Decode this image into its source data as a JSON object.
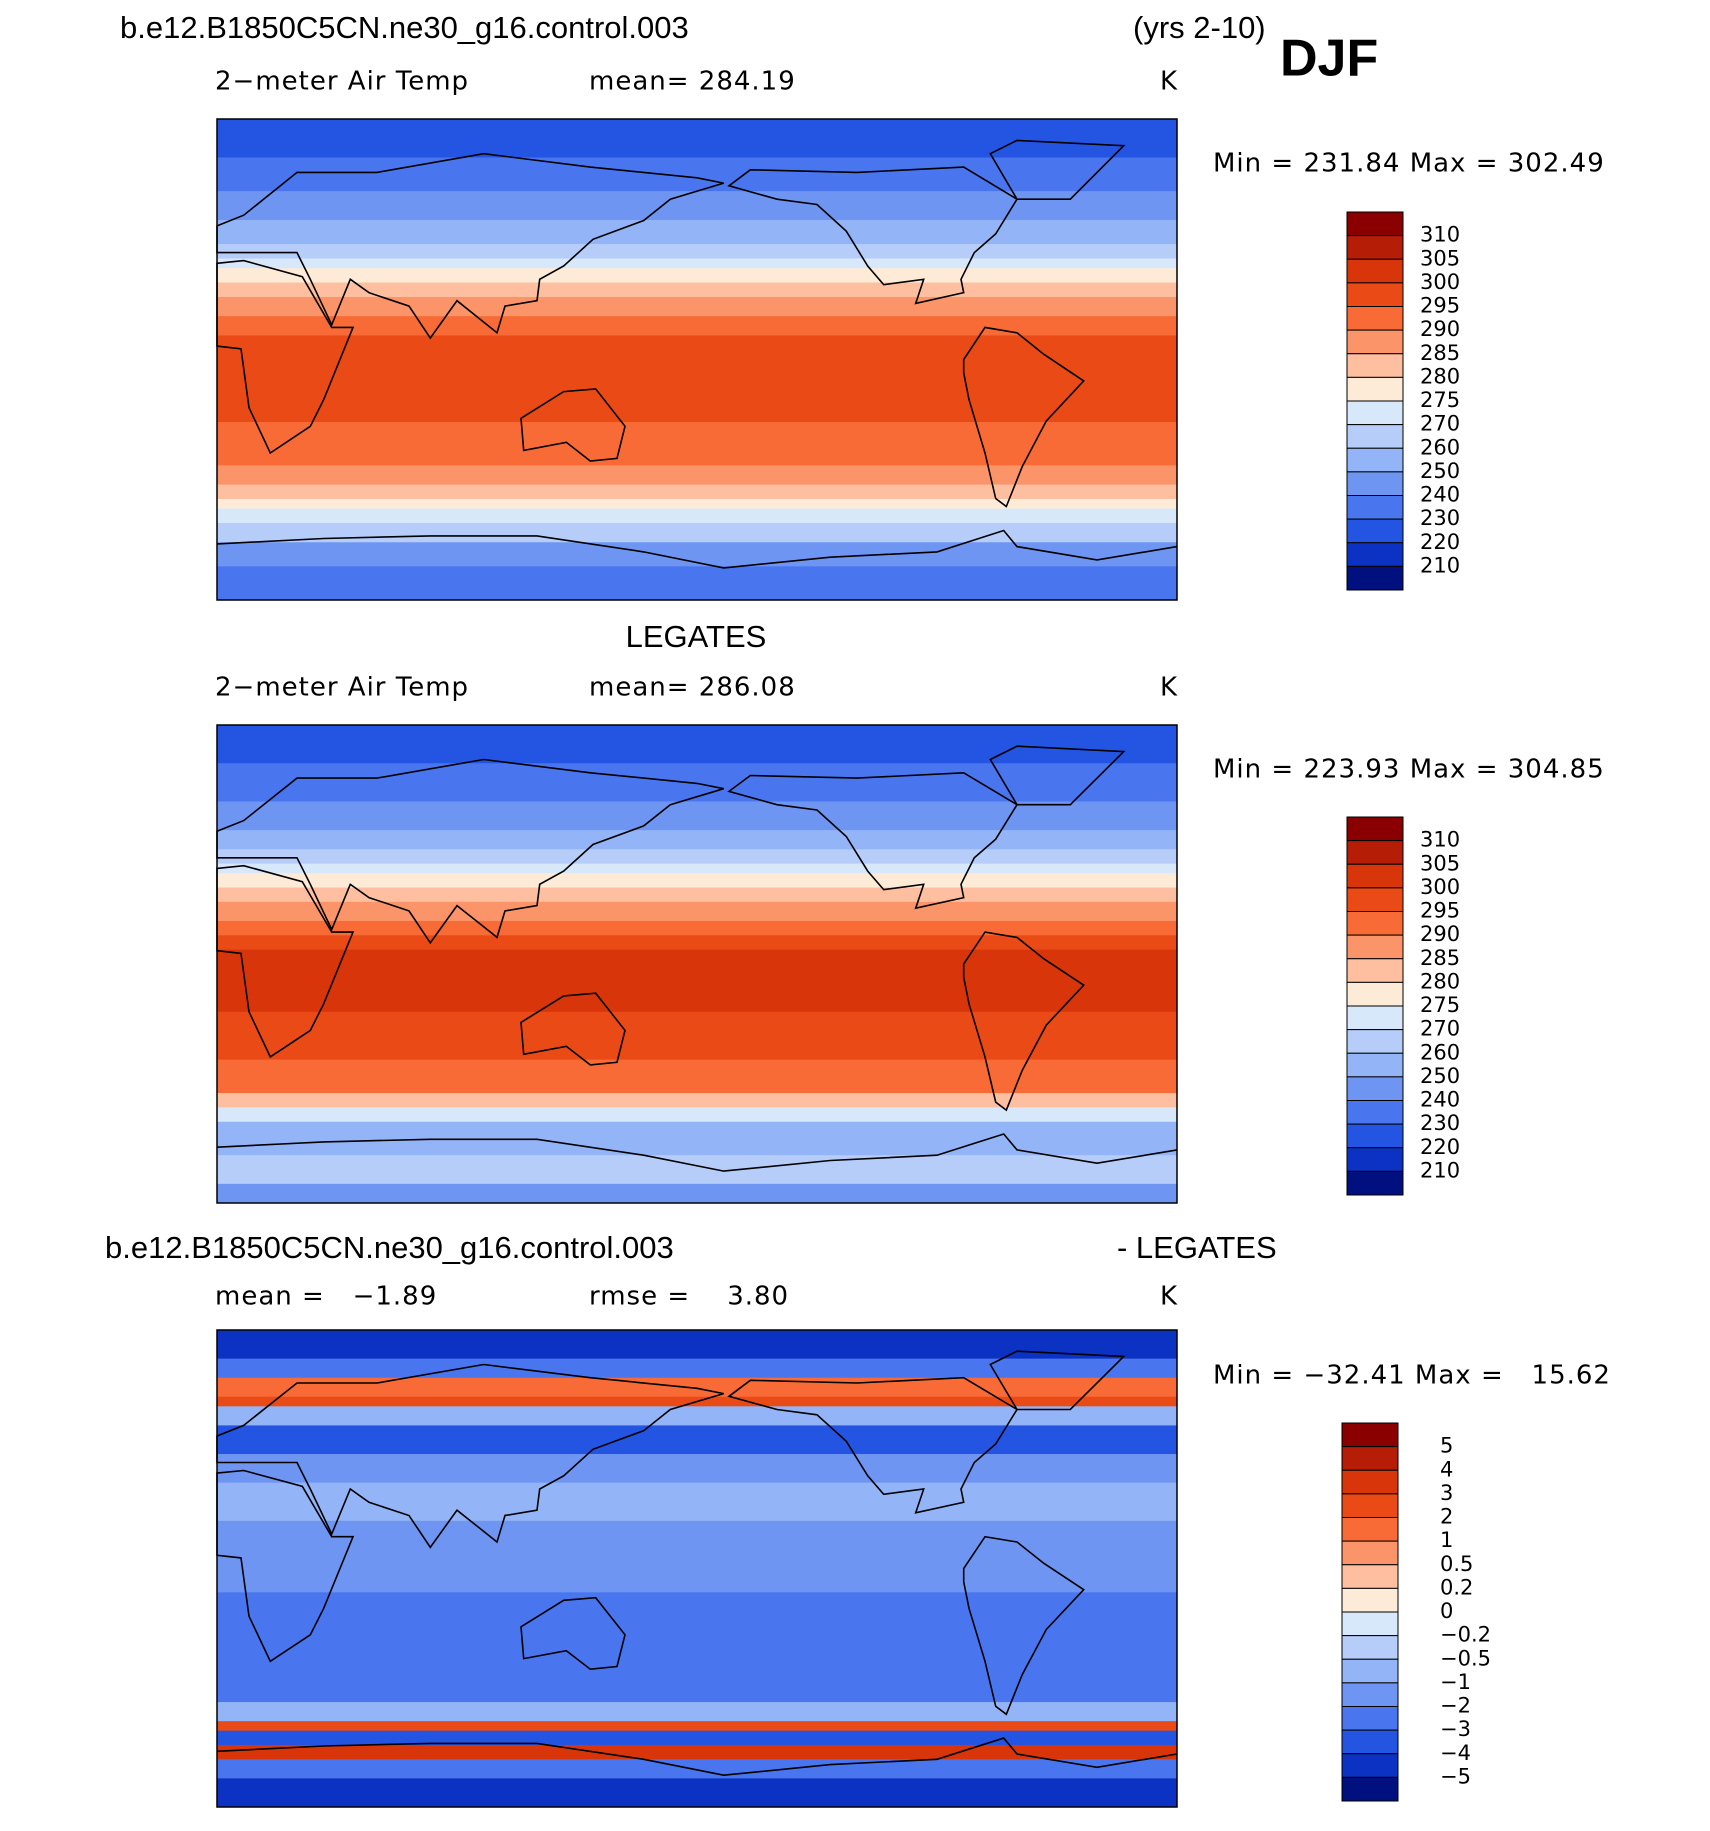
{
  "header": {
    "case": "b.e12.B1850C5CN.ne30_g16.control.003",
    "years": "(yrs 2-10)",
    "season": "DJF"
  },
  "panels": [
    {
      "label": "2−meter Air Temp",
      "mean": "mean= 284.19",
      "units": "K",
      "range": "Min = 231.84 Max = 302.49",
      "colorbar": {
        "labels": [
          "310",
          "305",
          "300",
          "295",
          "290",
          "285",
          "280",
          "275",
          "270",
          "260",
          "250",
          "240",
          "230",
          "220",
          "210"
        ],
        "colors": [
          "#8a0000",
          "#b51d06",
          "#d8360a",
          "#ea4a16",
          "#f86a36",
          "#fb9468",
          "#fdbfa0",
          "#fdebd8",
          "#d8e8fb",
          "#b5cdf8",
          "#93b4f6",
          "#6f95f2",
          "#4975ee",
          "#2454e2",
          "#0c32c4",
          "#00107e"
        ]
      }
    },
    {
      "title": "LEGATES",
      "label": "2−meter Air Temp",
      "mean": "mean= 286.08",
      "units": "K",
      "range": "Min = 223.93 Max = 304.85",
      "colorbar": {
        "labels": [
          "310",
          "305",
          "300",
          "295",
          "290",
          "285",
          "280",
          "275",
          "270",
          "260",
          "250",
          "240",
          "230",
          "220",
          "210"
        ],
        "colors": [
          "#8a0000",
          "#b51d06",
          "#d8360a",
          "#ea4a16",
          "#f86a36",
          "#fb9468",
          "#fdbfa0",
          "#fdebd8",
          "#d8e8fb",
          "#b5cdf8",
          "#93b4f6",
          "#6f95f2",
          "#4975ee",
          "#2454e2",
          "#0c32c4",
          "#00107e"
        ]
      }
    },
    {
      "title_left": "b.e12.B1850C5CN.ne30_g16.control.003",
      "title_right": "- LEGATES",
      "mean": "mean =   −1.89",
      "rmse": "rmse =    3.80",
      "units": "K",
      "range": "Min = −32.41 Max =   15.62",
      "colorbar": {
        "labels": [
          "5",
          "4",
          "3",
          "2",
          "1",
          "0.5",
          "0.2",
          "0",
          "−0.2",
          "−0.5",
          "−1",
          "−2",
          "−3",
          "−4",
          "−5"
        ],
        "colors": [
          "#8a0000",
          "#b51d06",
          "#d8360a",
          "#ea4a16",
          "#f86a36",
          "#fb9468",
          "#fdbfa0",
          "#fdebd8",
          "#d8e8fb",
          "#b5cdf8",
          "#93b4f6",
          "#6f95f2",
          "#4975ee",
          "#2454e2",
          "#0c32c4",
          "#00107e"
        ]
      }
    }
  ]
}
